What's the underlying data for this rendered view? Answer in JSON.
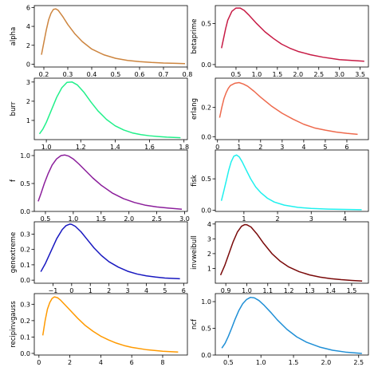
{
  "chart_data": [
    {
      "type": "line",
      "ylabel": "alpha",
      "color": "#cd853f",
      "xlim": [
        0.16,
        0.8
      ],
      "ylim": [
        -0.3,
        6.2
      ],
      "xticks": [
        0.2,
        0.3,
        0.4,
        0.5,
        0.6,
        0.7,
        0.8
      ],
      "xtick_labels": [
        "0.2",
        "0.3",
        "0.4",
        "0.5",
        "0.6",
        "0.7",
        "0.8"
      ],
      "yticks": [
        0,
        2,
        4,
        6
      ],
      "ytick_labels": [
        "0",
        "2",
        "4",
        "6"
      ],
      "x": [
        0.19,
        0.2,
        0.21,
        0.22,
        0.23,
        0.24,
        0.25,
        0.26,
        0.28,
        0.3,
        0.33,
        0.36,
        0.4,
        0.45,
        0.5,
        0.55,
        0.6,
        0.65,
        0.7,
        0.75,
        0.79
      ],
      "y": [
        1.0,
        2.3,
        3.6,
        4.7,
        5.4,
        5.8,
        5.85,
        5.7,
        5.0,
        4.2,
        3.2,
        2.4,
        1.6,
        1.0,
        0.62,
        0.4,
        0.27,
        0.18,
        0.12,
        0.09,
        0.06
      ]
    },
    {
      "type": "line",
      "ylabel": "betaprime",
      "color": "#c71b45",
      "xlim": [
        0.0,
        3.7
      ],
      "ylim": [
        -0.03,
        0.72
      ],
      "xticks": [
        0.5,
        1.0,
        1.5,
        2.0,
        2.5,
        3.0,
        3.5
      ],
      "xtick_labels": [
        "0.5",
        "1.0",
        "1.5",
        "2.0",
        "2.5",
        "3.0",
        "3.5"
      ],
      "yticks": [
        0.0,
        0.5
      ],
      "ytick_labels": [
        "0.0",
        "0.5"
      ],
      "x": [
        0.15,
        0.2,
        0.25,
        0.3,
        0.4,
        0.5,
        0.6,
        0.7,
        0.8,
        1.0,
        1.2,
        1.4,
        1.6,
        1.8,
        2.0,
        2.3,
        2.6,
        3.0,
        3.3,
        3.6
      ],
      "y": [
        0.2,
        0.32,
        0.44,
        0.54,
        0.65,
        0.69,
        0.69,
        0.66,
        0.61,
        0.5,
        0.4,
        0.32,
        0.25,
        0.2,
        0.16,
        0.12,
        0.09,
        0.06,
        0.05,
        0.04
      ]
    },
    {
      "type": "line",
      "ylabel": "burr",
      "color": "#21f08a",
      "xlim": [
        0.93,
        1.82
      ],
      "ylim": [
        0.0,
        3.2
      ],
      "xticks": [
        1.0,
        1.2,
        1.4,
        1.6,
        1.8
      ],
      "xtick_labels": [
        "1.0",
        "1.2",
        "1.4",
        "1.6",
        "1.8"
      ],
      "yticks": [
        1,
        2,
        3
      ],
      "ytick_labels": [
        "1",
        "2",
        "3"
      ],
      "x": [
        0.96,
        0.98,
        1.0,
        1.03,
        1.06,
        1.09,
        1.12,
        1.15,
        1.18,
        1.22,
        1.26,
        1.3,
        1.35,
        1.4,
        1.45,
        1.5,
        1.55,
        1.6,
        1.65,
        1.7,
        1.78
      ],
      "y": [
        0.3,
        0.55,
        0.9,
        1.55,
        2.2,
        2.7,
        2.98,
        3.0,
        2.85,
        2.45,
        1.95,
        1.5,
        1.05,
        0.72,
        0.5,
        0.35,
        0.26,
        0.2,
        0.16,
        0.13,
        0.1
      ]
    },
    {
      "type": "line",
      "ylabel": "erlang",
      "color": "#ee6a4d",
      "xlim": [
        -0.1,
        7.0
      ],
      "ylim": [
        -0.02,
        0.4
      ],
      "xticks": [
        0,
        1,
        2,
        3,
        4,
        5,
        6
      ],
      "xtick_labels": [
        "0",
        "1",
        "2",
        "3",
        "4",
        "5",
        "6"
      ],
      "yticks": [
        0.0,
        0.2
      ],
      "ytick_labels": [
        "0.0",
        "0.2"
      ],
      "x": [
        0.1,
        0.2,
        0.3,
        0.4,
        0.5,
        0.6,
        0.8,
        1.0,
        1.2,
        1.4,
        1.7,
        2.0,
        2.5,
        3.0,
        3.5,
        4.0,
        4.5,
        5.0,
        5.5,
        6.0,
        6.5
      ],
      "y": [
        0.13,
        0.2,
        0.26,
        0.3,
        0.33,
        0.35,
        0.365,
        0.37,
        0.36,
        0.345,
        0.31,
        0.27,
        0.21,
        0.16,
        0.12,
        0.085,
        0.06,
        0.045,
        0.032,
        0.023,
        0.016
      ]
    },
    {
      "type": "line",
      "ylabel": "f",
      "color": "#8b1e9b",
      "xlim": [
        0.3,
        3.05
      ],
      "ylim": [
        0.0,
        1.1
      ],
      "xticks": [
        0.5,
        1.0,
        1.5,
        2.0,
        2.5,
        3.0
      ],
      "xtick_labels": [
        "0.5",
        "1.0",
        "1.5",
        "2.0",
        "2.5",
        "3.0"
      ],
      "yticks": [
        0.0,
        0.5,
        1.0
      ],
      "ytick_labels": [
        "0.0",
        "0.5",
        "1.0"
      ],
      "x": [
        0.37,
        0.42,
        0.48,
        0.55,
        0.62,
        0.7,
        0.78,
        0.85,
        0.92,
        1.0,
        1.1,
        1.2,
        1.35,
        1.5,
        1.7,
        1.9,
        2.1,
        2.3,
        2.5,
        2.7,
        2.95
      ],
      "y": [
        0.18,
        0.32,
        0.5,
        0.68,
        0.83,
        0.94,
        1.0,
        1.01,
        0.99,
        0.94,
        0.85,
        0.75,
        0.6,
        0.47,
        0.33,
        0.23,
        0.16,
        0.11,
        0.08,
        0.06,
        0.04
      ]
    },
    {
      "type": "line",
      "ylabel": "fisk",
      "color": "#1ff0ee",
      "xlim": [
        0.15,
        4.7
      ],
      "ylim": [
        -0.02,
        0.96
      ],
      "xticks": [
        1,
        2,
        3,
        4
      ],
      "xtick_labels": [
        "1",
        "2",
        "3",
        "4"
      ],
      "yticks": [
        0.0,
        0.5
      ],
      "ytick_labels": [
        "0.0",
        "0.5"
      ],
      "x": [
        0.33,
        0.4,
        0.48,
        0.55,
        0.62,
        0.7,
        0.78,
        0.86,
        0.95,
        1.05,
        1.2,
        1.35,
        1.5,
        1.7,
        1.9,
        2.2,
        2.6,
        3.0,
        3.5,
        4.0,
        4.5
      ],
      "y": [
        0.15,
        0.3,
        0.48,
        0.64,
        0.77,
        0.86,
        0.88,
        0.85,
        0.77,
        0.66,
        0.5,
        0.37,
        0.28,
        0.19,
        0.13,
        0.08,
        0.045,
        0.028,
        0.017,
        0.011,
        0.007
      ]
    },
    {
      "type": "line",
      "ylabel": "genextreme",
      "color": "#1818c0",
      "xlim": [
        -2.0,
        6.2
      ],
      "ylim": [
        -0.02,
        0.38
      ],
      "xticks": [
        -1,
        0,
        1,
        2,
        3,
        4,
        5,
        6
      ],
      "xtick_labels": [
        "−1",
        "0",
        "1",
        "2",
        "3",
        "4",
        "5",
        "6"
      ],
      "yticks": [
        0.0,
        0.1,
        0.2,
        0.3
      ],
      "ytick_labels": [
        "0.0",
        "0.1",
        "0.2",
        "0.3"
      ],
      "x": [
        -1.65,
        -1.4,
        -1.1,
        -0.8,
        -0.5,
        -0.3,
        -0.1,
        0.0,
        0.2,
        0.5,
        0.8,
        1.2,
        1.6,
        2.0,
        2.5,
        3.0,
        3.5,
        4.0,
        4.5,
        5.0,
        5.8
      ],
      "y": [
        0.055,
        0.11,
        0.19,
        0.27,
        0.33,
        0.355,
        0.365,
        0.363,
        0.35,
        0.315,
        0.27,
        0.21,
        0.16,
        0.12,
        0.085,
        0.058,
        0.04,
        0.028,
        0.02,
        0.014,
        0.009
      ]
    },
    {
      "type": "line",
      "ylabel": "invweibull",
      "color": "#7a0a0a",
      "xlim": [
        0.85,
        1.58
      ],
      "ylim": [
        0.0,
        4.15
      ],
      "xticks": [
        0.9,
        1.0,
        1.1,
        1.2,
        1.3,
        1.4,
        1.5
      ],
      "xtick_labels": [
        "0.9",
        "1.0",
        "1.1",
        "1.2",
        "1.3",
        "1.4",
        "1.5"
      ],
      "yticks": [
        1,
        2,
        3,
        4
      ],
      "ytick_labels": [
        "1",
        "2",
        "3",
        "4"
      ],
      "x": [
        0.875,
        0.895,
        0.915,
        0.935,
        0.955,
        0.975,
        0.99,
        1.0,
        1.02,
        1.05,
        1.08,
        1.12,
        1.16,
        1.2,
        1.25,
        1.3,
        1.35,
        1.4,
        1.45,
        1.5,
        1.55
      ],
      "y": [
        0.55,
        1.2,
        2.0,
        2.8,
        3.45,
        3.85,
        3.96,
        3.95,
        3.8,
        3.3,
        2.7,
        2.0,
        1.48,
        1.1,
        0.78,
        0.56,
        0.41,
        0.31,
        0.24,
        0.19,
        0.15
      ]
    },
    {
      "type": "line",
      "ylabel": "recipinvgauss",
      "color": "#ff9a00",
      "xlim": [
        -0.3,
        9.6
      ],
      "ylim": [
        -0.01,
        0.365
      ],
      "xticks": [
        0,
        2,
        4,
        6,
        8
      ],
      "xtick_labels": [
        "0",
        "2",
        "4",
        "6",
        "8"
      ],
      "yticks": [
        0.0,
        0.1,
        0.2,
        0.3
      ],
      "ytick_labels": [
        "0.0",
        "0.1",
        "0.2",
        "0.3"
      ],
      "x": [
        0.25,
        0.4,
        0.55,
        0.7,
        0.85,
        1.0,
        1.2,
        1.4,
        1.7,
        2.0,
        2.5,
        3.0,
        3.5,
        4.0,
        4.5,
        5.0,
        5.5,
        6.0,
        7.0,
        8.0,
        9.0
      ],
      "y": [
        0.11,
        0.2,
        0.27,
        0.31,
        0.335,
        0.345,
        0.34,
        0.325,
        0.295,
        0.265,
        0.215,
        0.17,
        0.135,
        0.105,
        0.082,
        0.063,
        0.048,
        0.037,
        0.022,
        0.013,
        0.008
      ]
    },
    {
      "type": "line",
      "ylabel": "ncf",
      "color": "#1f8fd6",
      "xlim": [
        0.3,
        2.65
      ],
      "ylim": [
        0.0,
        1.15
      ],
      "xticks": [
        0.5,
        1.0,
        1.5,
        2.0,
        2.5
      ],
      "xtick_labels": [
        "0.5",
        "1.0",
        "1.5",
        "2.0",
        "2.5"
      ],
      "yticks": [
        0.0,
        0.5,
        1.0
      ],
      "ytick_labels": [
        "0.0",
        "0.5",
        "1.0"
      ],
      "x": [
        0.4,
        0.45,
        0.5,
        0.55,
        0.6,
        0.66,
        0.72,
        0.78,
        0.84,
        0.9,
        0.97,
        1.05,
        1.15,
        1.25,
        1.4,
        1.55,
        1.7,
        1.9,
        2.1,
        2.3,
        2.55
      ],
      "y": [
        0.13,
        0.22,
        0.35,
        0.5,
        0.66,
        0.83,
        0.96,
        1.04,
        1.08,
        1.07,
        1.02,
        0.93,
        0.8,
        0.66,
        0.48,
        0.34,
        0.24,
        0.15,
        0.09,
        0.055,
        0.03
      ]
    }
  ]
}
